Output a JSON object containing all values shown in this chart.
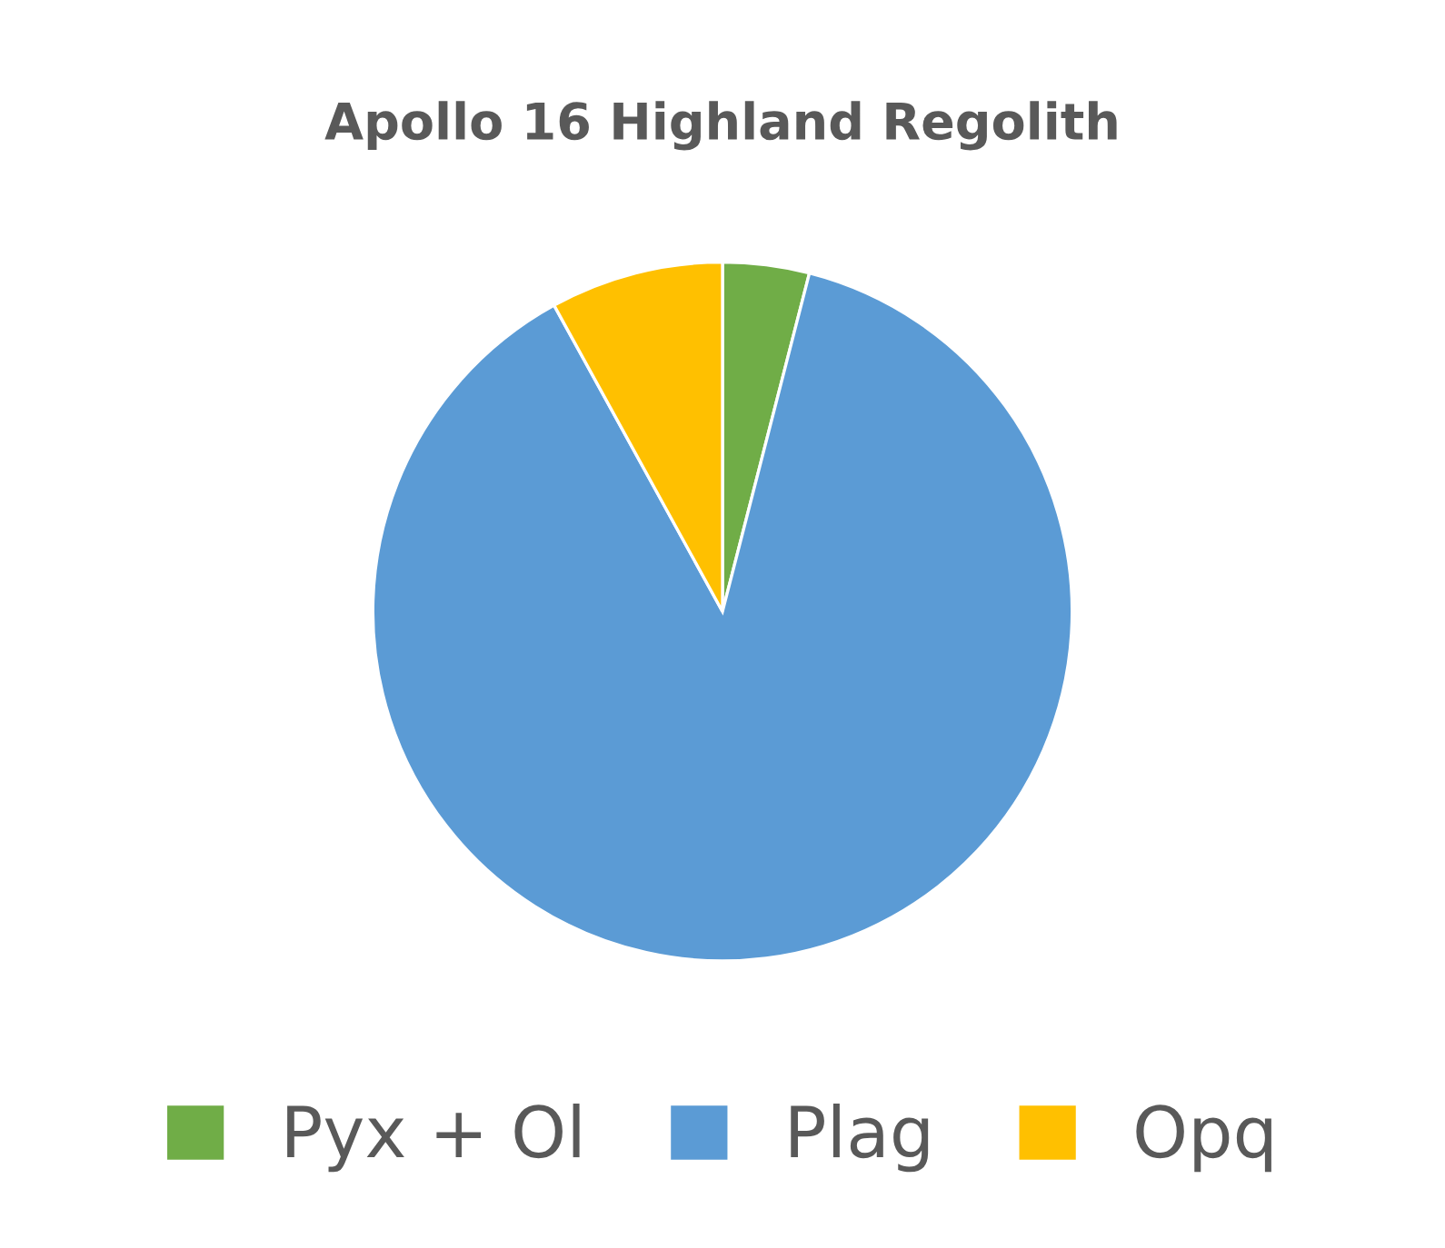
{
  "chart_data": {
    "type": "pie",
    "title": "Apollo 16 Highland Regolith",
    "categories": [
      "Pyx + Ol",
      "Plag",
      "Opq"
    ],
    "values": [
      4,
      88,
      8
    ],
    "colors": [
      "#70ad47",
      "#5b9bd5",
      "#ffc000"
    ],
    "legend": "bottom"
  }
}
